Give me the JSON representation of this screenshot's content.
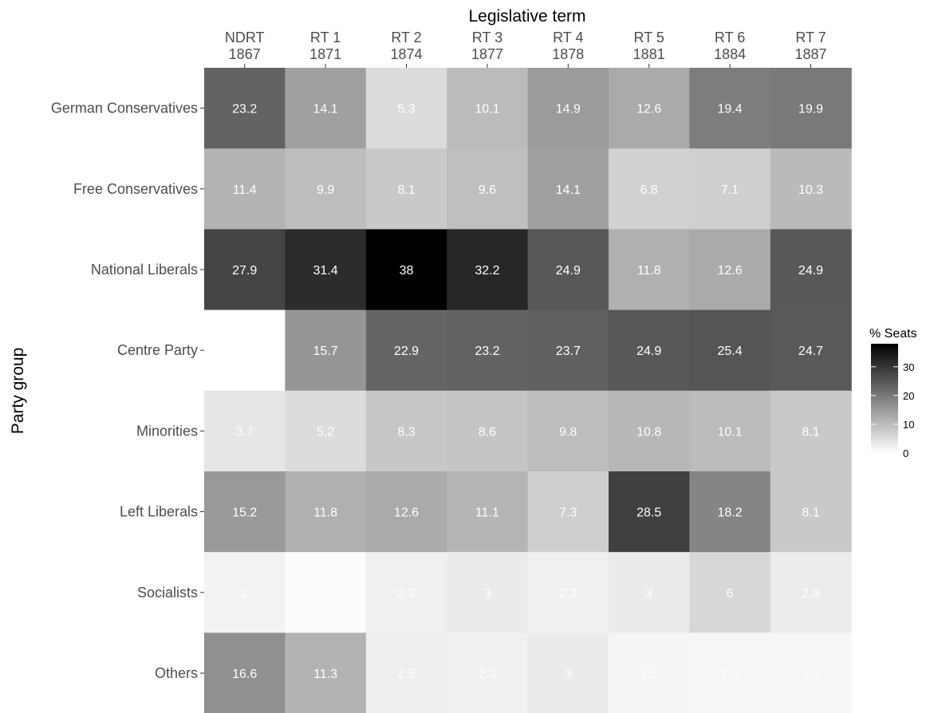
{
  "chart_data": {
    "type": "heatmap",
    "x_title": "Legislative term",
    "y_title": "Party group",
    "x_categories": [
      {
        "term": "NDRT",
        "year": "1867"
      },
      {
        "term": "RT 1",
        "year": "1871"
      },
      {
        "term": "RT 2",
        "year": "1874"
      },
      {
        "term": "RT 3",
        "year": "1877"
      },
      {
        "term": "RT 4",
        "year": "1878"
      },
      {
        "term": "RT 5",
        "year": "1881"
      },
      {
        "term": "RT 6",
        "year": "1884"
      },
      {
        "term": "RT 7",
        "year": "1887"
      }
    ],
    "y_categories": [
      "German Conservatives",
      "Free Conservatives",
      "National Liberals",
      "Centre Party",
      "Minorities",
      "Left Liberals",
      "Socialists",
      "Others"
    ],
    "values": [
      [
        23.2,
        14.1,
        5.3,
        10.1,
        14.9,
        12.6,
        19.4,
        19.9
      ],
      [
        11.4,
        9.9,
        8.1,
        9.6,
        14.1,
        6.8,
        7.1,
        10.3
      ],
      [
        27.9,
        31.4,
        38,
        32.2,
        24.9,
        11.8,
        12.6,
        24.9
      ],
      [
        null,
        15.7,
        22.9,
        23.2,
        23.7,
        24.9,
        25.4,
        24.7
      ],
      [
        3.7,
        5.2,
        8.3,
        8.6,
        9.8,
        10.8,
        10.1,
        8.1
      ],
      [
        15.2,
        11.8,
        12.6,
        11.1,
        7.3,
        28.5,
        18.2,
        8.1
      ],
      [
        2,
        0.5,
        2.3,
        3,
        2.3,
        3,
        6,
        2.8
      ],
      [
        16.6,
        11.3,
        2.5,
        2.3,
        3,
        1.5,
        1.3,
        1.3
      ]
    ],
    "value_range": [
      0,
      38
    ],
    "color_low": "#ffffff",
    "color_high": "#000000",
    "legend": {
      "title": "% Seats",
      "ticks": [
        0,
        10,
        20,
        30
      ],
      "placement": "right"
    },
    "grid": false
  }
}
